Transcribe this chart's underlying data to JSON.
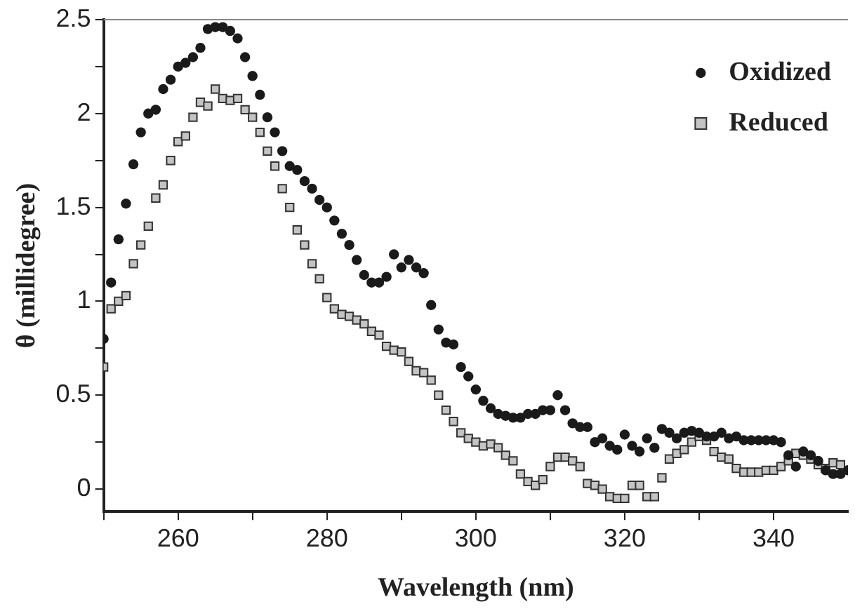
{
  "chart_data": {
    "type": "scatter",
    "xlabel": "Wavelength (nm)",
    "ylabel": "θ (millidegree)",
    "x": [
      250,
      251,
      252,
      253,
      254,
      255,
      256,
      257,
      258,
      259,
      260,
      261,
      262,
      263,
      264,
      265,
      266,
      267,
      268,
      269,
      270,
      271,
      272,
      273,
      274,
      275,
      276,
      277,
      278,
      279,
      280,
      281,
      282,
      283,
      284,
      285,
      286,
      287,
      288,
      289,
      290,
      291,
      292,
      293,
      294,
      295,
      296,
      297,
      298,
      299,
      300,
      301,
      302,
      303,
      304,
      305,
      306,
      307,
      308,
      309,
      310,
      311,
      312,
      313,
      314,
      315,
      316,
      317,
      318,
      319,
      320,
      321,
      322,
      323,
      324,
      325,
      326,
      327,
      328,
      329,
      330,
      331,
      332,
      333,
      334,
      335,
      336,
      337,
      338,
      339,
      340,
      341,
      342,
      343,
      344,
      345,
      346,
      347,
      348,
      349,
      350
    ],
    "series": [
      {
        "name": "Oxidized",
        "color": "#1a1a1a",
        "marker": "circle",
        "values": [
          0.8,
          1.1,
          1.33,
          1.52,
          1.73,
          1.9,
          2.0,
          2.02,
          2.13,
          2.18,
          2.25,
          2.27,
          2.3,
          2.35,
          2.45,
          2.46,
          2.46,
          2.44,
          2.4,
          2.3,
          2.2,
          2.1,
          1.98,
          1.9,
          1.8,
          1.72,
          1.7,
          1.64,
          1.6,
          1.54,
          1.5,
          1.43,
          1.36,
          1.3,
          1.22,
          1.14,
          1.1,
          1.1,
          1.13,
          1.25,
          1.18,
          1.22,
          1.18,
          1.15,
          0.98,
          0.85,
          0.78,
          0.77,
          0.65,
          0.6,
          0.53,
          0.47,
          0.43,
          0.4,
          0.39,
          0.38,
          0.38,
          0.4,
          0.4,
          0.42,
          0.42,
          0.5,
          0.42,
          0.35,
          0.33,
          0.33,
          0.25,
          0.27,
          0.23,
          0.21,
          0.29,
          0.23,
          0.2,
          0.27,
          0.22,
          0.32,
          0.3,
          0.27,
          0.3,
          0.31,
          0.3,
          0.28,
          0.28,
          0.3,
          0.27,
          0.28,
          0.26,
          0.26,
          0.26,
          0.26,
          0.26,
          0.25,
          0.18,
          0.12,
          0.2,
          0.18,
          0.15,
          0.1,
          0.08,
          0.08,
          0.1
        ]
      },
      {
        "name": "Reduced",
        "color": "#c4c4c4",
        "marker": "square",
        "values": [
          0.65,
          0.96,
          1.0,
          1.03,
          1.2,
          1.3,
          1.4,
          1.55,
          1.62,
          1.75,
          1.85,
          1.88,
          1.98,
          2.06,
          2.04,
          2.13,
          2.08,
          2.07,
          2.08,
          2.02,
          1.98,
          1.9,
          1.8,
          1.72,
          1.6,
          1.5,
          1.38,
          1.3,
          1.2,
          1.12,
          1.02,
          0.96,
          0.93,
          0.92,
          0.9,
          0.88,
          0.84,
          0.82,
          0.76,
          0.74,
          0.73,
          0.68,
          0.63,
          0.62,
          0.58,
          0.5,
          0.42,
          0.36,
          0.3,
          0.27,
          0.25,
          0.23,
          0.24,
          0.22,
          0.18,
          0.15,
          0.08,
          0.04,
          0.02,
          0.05,
          0.12,
          0.17,
          0.17,
          0.15,
          0.12,
          0.03,
          0.02,
          0.0,
          -0.04,
          -0.05,
          -0.05,
          0.02,
          0.02,
          -0.04,
          -0.04,
          0.06,
          0.16,
          0.19,
          0.21,
          0.25,
          0.28,
          0.26,
          0.2,
          0.17,
          0.16,
          0.11,
          0.09,
          0.09,
          0.09,
          0.1,
          0.1,
          0.12,
          0.15,
          0.19,
          0.18,
          0.16,
          0.13,
          0.11,
          0.14,
          0.13,
          null
        ]
      }
    ],
    "xlim": [
      250,
      350
    ],
    "xticks": [
      {
        "value": 250,
        "label": null
      },
      260,
      {
        "value": 270,
        "label": null
      },
      280,
      {
        "value": 290,
        "label": null
      },
      300,
      {
        "value": 310,
        "label": null
      },
      320,
      {
        "value": 330,
        "label": null
      },
      340
    ],
    "ylim": [
      -0.12,
      2.5
    ],
    "yticks": [
      0,
      {
        "value": 0.25,
        "label": null
      },
      0.5,
      {
        "value": 0.75,
        "label": null
      },
      1,
      {
        "value": 1.25,
        "label": null
      },
      1.5,
      {
        "value": 1.75,
        "label": null
      },
      2,
      {
        "value": 2.25,
        "label": null
      },
      2.5
    ],
    "grid": false,
    "legend": "top right"
  }
}
